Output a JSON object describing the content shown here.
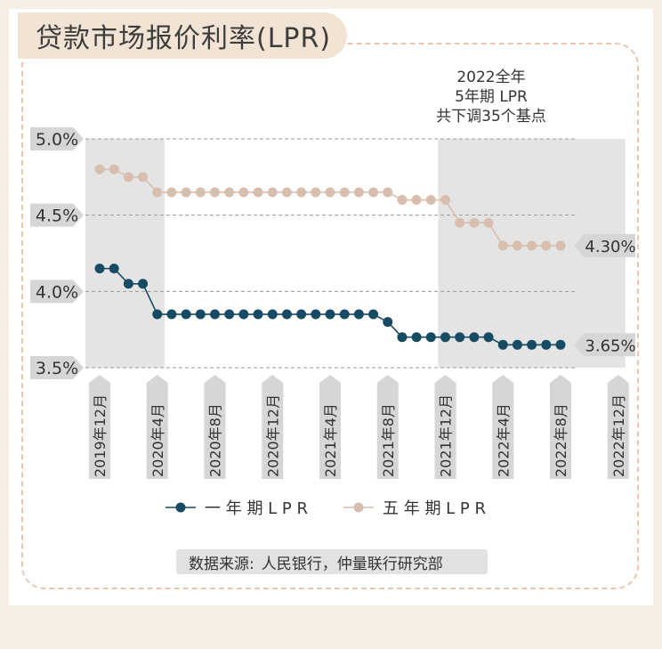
{
  "header": {
    "title": "贷款市场报价利率(LPR)"
  },
  "annotation": {
    "lines": [
      "2022全年",
      "5年期 LPR",
      "共下调35个基点"
    ]
  },
  "source": {
    "label": "数据来源:",
    "value": "人民银行，仲量联行研究部"
  },
  "colors": {
    "series1": "#174a63",
    "series2": "#d8bfad",
    "highlight": "#e4e4e4",
    "badge": "#d6d6d6",
    "frame": "#eac6b0"
  },
  "chart_data": {
    "type": "line",
    "ylim": [
      3.5,
      5.0
    ],
    "yticks": [
      "5.0%",
      "4.5%",
      "4.0%",
      "3.5%"
    ],
    "ytick_values": [
      5.0,
      4.5,
      4.0,
      3.5
    ],
    "grid": true,
    "legend_position": "bottom",
    "x_tick_labels": [
      "2019年12月",
      "2020年4月",
      "2020年8月",
      "2020年12月",
      "2021年4月",
      "2021年8月",
      "2021年12月",
      "2022年4月",
      "2022年8月",
      "2022年12月"
    ],
    "highlight_ranges": [
      [
        "2019年12月",
        "2020年4月"
      ],
      [
        "2021年12月",
        "2022年12月"
      ]
    ],
    "series": [
      {
        "name": "一年期LPR",
        "legend_label": "一 年 期 L P R",
        "end_label": "3.65%",
        "values": [
          4.15,
          4.15,
          4.05,
          4.05,
          3.85,
          3.85,
          3.85,
          3.85,
          3.85,
          3.85,
          3.85,
          3.85,
          3.85,
          3.85,
          3.85,
          3.85,
          3.85,
          3.85,
          3.85,
          3.85,
          3.8,
          3.7,
          3.7,
          3.7,
          3.7,
          3.7,
          3.7,
          3.7,
          3.65,
          3.65,
          3.65,
          3.65,
          3.65
        ]
      },
      {
        "name": "五年期LPR",
        "legend_label": "五 年 期 L P R",
        "end_label": "4.30%",
        "values": [
          4.8,
          4.8,
          4.75,
          4.75,
          4.65,
          4.65,
          4.65,
          4.65,
          4.65,
          4.65,
          4.65,
          4.65,
          4.65,
          4.65,
          4.65,
          4.65,
          4.65,
          4.65,
          4.65,
          4.65,
          4.65,
          4.6,
          4.6,
          4.6,
          4.6,
          4.45,
          4.45,
          4.45,
          4.3,
          4.3,
          4.3,
          4.3,
          4.3
        ]
      }
    ]
  }
}
